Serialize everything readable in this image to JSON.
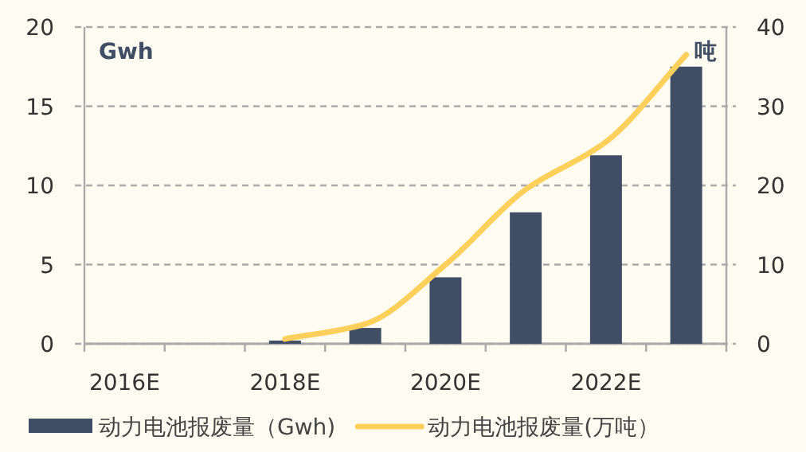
{
  "chart_data": {
    "type": "bar",
    "categories": [
      "2016E",
      null,
      "2018E",
      null,
      "2020E",
      null,
      "2022E",
      null
    ],
    "series": [
      {
        "name": "动力电池报废量（Gwh)",
        "color": "#404e65",
        "values": [
          null,
          null,
          0.2,
          1,
          4.2,
          8.3,
          11.9,
          17.5
        ]
      },
      {
        "name": "动力电池报废量(万吨）",
        "type": "line",
        "axis": "y2",
        "color": "#fcd05a",
        "values": [
          null,
          null,
          0.6,
          2.5,
          10,
          19.5,
          25.5,
          36.5
        ]
      }
    ],
    "ylabel": "Gwh",
    "y2label": "吨",
    "ylim": [
      0,
      20
    ],
    "yticks": [
      0,
      5,
      10,
      15,
      20
    ],
    "y2lim": [
      0,
      40
    ],
    "y2ticks": [
      0,
      10,
      20,
      30,
      40
    ],
    "grid": "y",
    "legend": "bottom",
    "line_style": "solid",
    "marker": "none"
  }
}
